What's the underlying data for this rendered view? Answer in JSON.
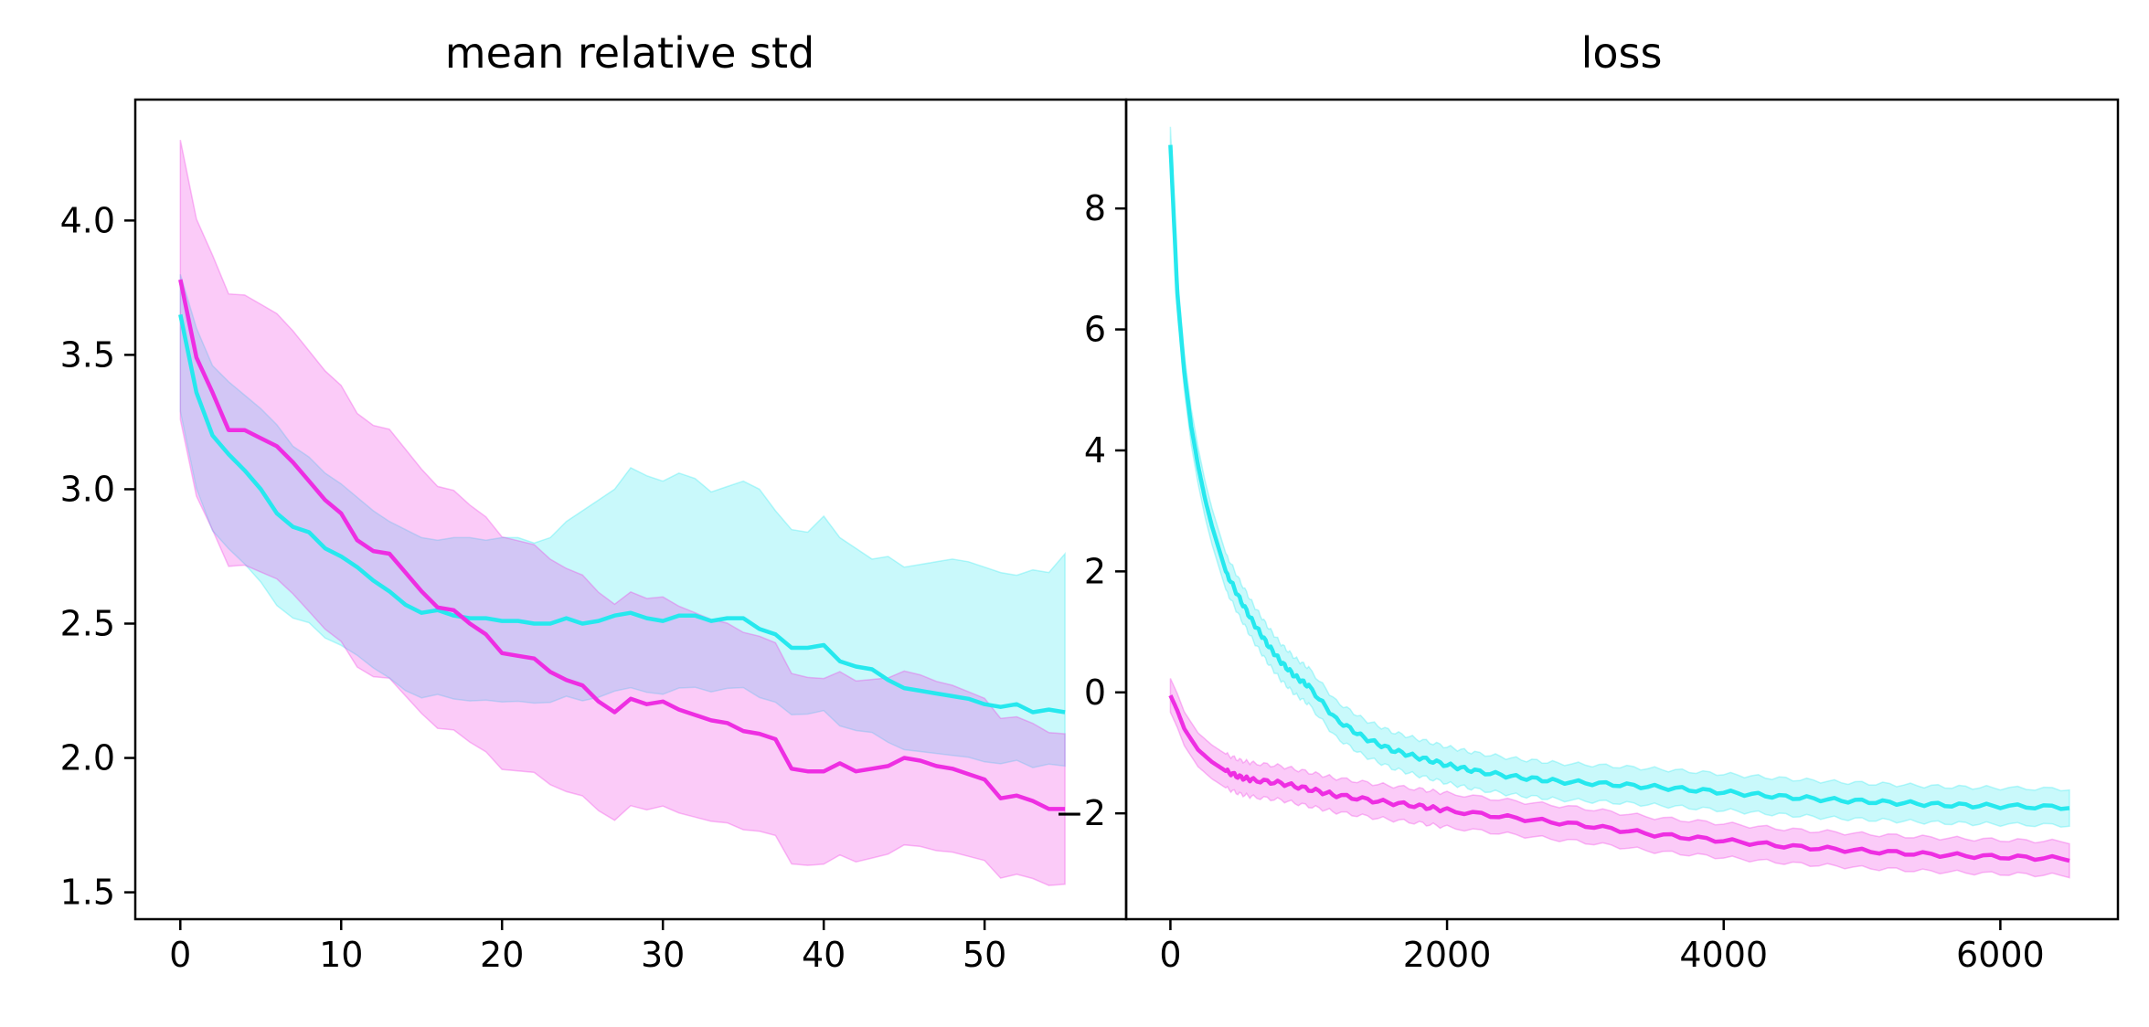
{
  "colors": {
    "cyan": "#26e8ee",
    "cyan_band": "#c8f9f9",
    "magenta": "#ee2ee2",
    "magenta_band": "#f9c8f9",
    "overlap_band": "#d3c6f3"
  },
  "chart_data": [
    {
      "type": "line",
      "title": "mean relative std",
      "xlabel": "",
      "ylabel": "",
      "xlim": [
        -2.8,
        58.8
      ],
      "ylim": [
        1.4,
        4.45
      ],
      "xticks": [
        0,
        10,
        20,
        30,
        40,
        50
      ],
      "xtick_labels": [
        "0",
        "10",
        "20",
        "30",
        "40",
        "50"
      ],
      "yticks": [
        1.5,
        2.0,
        2.5,
        3.0,
        3.5,
        4.0
      ],
      "ytick_labels": [
        "1.5",
        "2.0",
        "2.5",
        "3.0",
        "3.5",
        "4.0"
      ],
      "grid": false,
      "series": [
        {
          "color": "cyan",
          "x": [
            0,
            1,
            2,
            3,
            4,
            5,
            6,
            7,
            8,
            9,
            10,
            11,
            12,
            13,
            14,
            15,
            16,
            17,
            18,
            19,
            20,
            21,
            22,
            23,
            24,
            25,
            26,
            27,
            28,
            29,
            30,
            31,
            32,
            33,
            34,
            35,
            36,
            37,
            38,
            39,
            40,
            41,
            42,
            43,
            44,
            45,
            46,
            47,
            48,
            49,
            50,
            51,
            52,
            53,
            54,
            55
          ],
          "values": [
            3.65,
            3.36,
            3.2,
            3.13,
            3.07,
            3.0,
            2.91,
            2.86,
            2.84,
            2.78,
            2.75,
            2.71,
            2.66,
            2.62,
            2.57,
            2.54,
            2.55,
            2.53,
            2.52,
            2.52,
            2.51,
            2.51,
            2.5,
            2.5,
            2.52,
            2.5,
            2.51,
            2.53,
            2.54,
            2.52,
            2.51,
            2.53,
            2.53,
            2.51,
            2.52,
            2.52,
            2.48,
            2.46,
            2.41,
            2.41,
            2.42,
            2.36,
            2.34,
            2.33,
            2.29,
            2.26,
            2.25,
            2.24,
            2.23,
            2.22,
            2.2,
            2.19,
            2.2,
            2.17,
            2.18,
            2.17
          ],
          "upper": [
            3.8,
            3.6,
            3.46,
            3.4,
            3.35,
            3.3,
            3.24,
            3.16,
            3.12,
            3.06,
            3.02,
            2.97,
            2.92,
            2.88,
            2.85,
            2.82,
            2.81,
            2.82,
            2.82,
            2.81,
            2.82,
            2.82,
            2.8,
            2.82,
            2.88,
            2.92,
            2.96,
            3.0,
            3.08,
            3.05,
            3.03,
            3.06,
            3.04,
            2.99,
            3.01,
            3.03,
            3.0,
            2.92,
            2.85,
            2.84,
            2.9,
            2.82,
            2.78,
            2.74,
            2.75,
            2.71,
            2.72,
            2.73,
            2.74,
            2.73,
            2.71,
            2.69,
            2.68,
            2.7,
            2.69,
            2.76
          ]
        },
        {
          "color": "magenta",
          "x": [
            0,
            1,
            2,
            3,
            4,
            5,
            6,
            7,
            8,
            9,
            10,
            11,
            12,
            13,
            14,
            15,
            16,
            17,
            18,
            19,
            20,
            21,
            22,
            23,
            24,
            25,
            26,
            27,
            28,
            29,
            30,
            31,
            32,
            33,
            34,
            35,
            36,
            37,
            38,
            39,
            40,
            41,
            42,
            43,
            44,
            45,
            46,
            47,
            48,
            49,
            50,
            51,
            52,
            53,
            54,
            55
          ],
          "values": [
            3.78,
            3.49,
            3.36,
            3.22,
            3.22,
            3.19,
            3.16,
            3.1,
            3.03,
            2.96,
            2.91,
            2.81,
            2.77,
            2.76,
            2.69,
            2.62,
            2.56,
            2.55,
            2.5,
            2.46,
            2.39,
            2.38,
            2.37,
            2.32,
            2.29,
            2.27,
            2.21,
            2.17,
            2.22,
            2.2,
            2.21,
            2.18,
            2.16,
            2.14,
            2.13,
            2.1,
            2.09,
            2.07,
            1.96,
            1.95,
            1.95,
            1.98,
            1.95,
            1.96,
            1.97,
            2.0,
            1.99,
            1.97,
            1.96,
            1.94,
            1.92,
            1.85,
            1.86,
            1.84,
            1.81,
            1.81
          ]
        }
      ]
    },
    {
      "type": "line",
      "title": "loss",
      "xlabel": "",
      "ylabel": "",
      "xlim": [
        -320,
        6850
      ],
      "ylim": [
        -3.75,
        9.8
      ],
      "xticks": [
        0,
        2000,
        4000,
        6000
      ],
      "xtick_labels": [
        "0",
        "2000",
        "4000",
        "6000"
      ],
      "yticks": [
        -2,
        0,
        2,
        4,
        6,
        8
      ],
      "ytick_labels": [
        "−2",
        "0",
        "2",
        "4",
        "6",
        "8"
      ],
      "grid": false,
      "series": [
        {
          "color": "cyan",
          "x": [
            0,
            50,
            100,
            150,
            200,
            250,
            300,
            400,
            500,
            600,
            700,
            800,
            900,
            1000,
            1200,
            1400,
            1600,
            1800,
            2000,
            2200,
            2500,
            2800,
            3200,
            3600,
            4000,
            4400,
            4800,
            5200,
            5600,
            6000,
            6500
          ],
          "values": [
            9.05,
            6.6,
            5.3,
            4.4,
            3.75,
            3.2,
            2.75,
            2.0,
            1.55,
            1.15,
            0.8,
            0.5,
            0.27,
            0.1,
            -0.45,
            -0.75,
            -0.95,
            -1.08,
            -1.2,
            -1.3,
            -1.4,
            -1.47,
            -1.52,
            -1.58,
            -1.65,
            -1.72,
            -1.78,
            -1.82,
            -1.86,
            -1.88,
            -1.9
          ],
          "band": 0.3
        },
        {
          "color": "magenta",
          "x": [
            0,
            50,
            100,
            200,
            300,
            400,
            500,
            600,
            800,
            1000,
            1200,
            1500,
            1800,
            2000,
            2500,
            3000,
            3500,
            4000,
            4500,
            5000,
            5500,
            6000,
            6500
          ],
          "values": [
            -0.05,
            -0.3,
            -0.6,
            -0.95,
            -1.15,
            -1.3,
            -1.4,
            -1.45,
            -1.5,
            -1.6,
            -1.7,
            -1.8,
            -1.88,
            -1.95,
            -2.08,
            -2.2,
            -2.35,
            -2.45,
            -2.55,
            -2.62,
            -2.68,
            -2.72,
            -2.75
          ],
          "band": 0.28
        }
      ]
    }
  ]
}
